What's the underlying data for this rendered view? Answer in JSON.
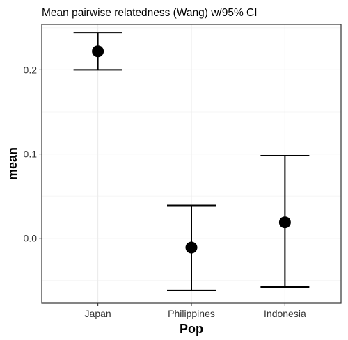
{
  "chart_data": {
    "type": "errorbar",
    "title": "Mean pairwise relatedness (Wang) w/95% CI",
    "xlabel": "Pop",
    "ylabel": "mean",
    "categories": [
      "Japan",
      "Philippines",
      "Indonesia"
    ],
    "points": [
      {
        "category": "Japan",
        "mean": 0.222,
        "lower": 0.2,
        "upper": 0.244
      },
      {
        "category": "Philippines",
        "mean": -0.011,
        "lower": -0.062,
        "upper": 0.039
      },
      {
        "category": "Indonesia",
        "mean": 0.019,
        "lower": -0.058,
        "upper": 0.098
      }
    ],
    "ylim": [
      -0.077,
      0.254
    ],
    "y_ticks": [
      0.0,
      0.1,
      0.2
    ],
    "y_tick_labels": [
      "0.0",
      "0.1",
      "0.2"
    ],
    "grid": true,
    "theme": "black-and-white",
    "point_color": "#000000"
  }
}
